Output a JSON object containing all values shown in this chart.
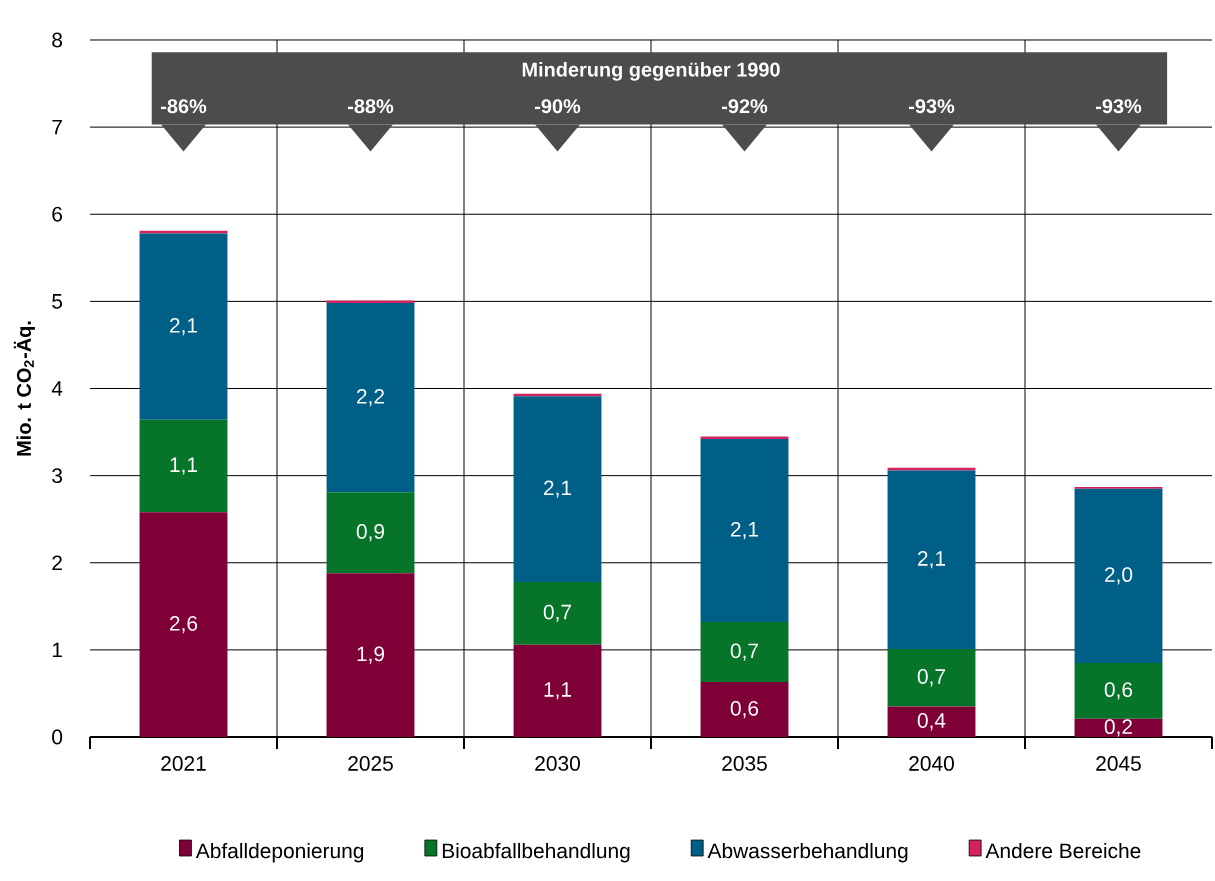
{
  "chart_data": {
    "type": "bar",
    "stacked": true,
    "ylabel": "Mio. t CO$_{2}$-Äq.",
    "categories": [
      "2021",
      "2025",
      "2030",
      "2035",
      "2040",
      "2045"
    ],
    "series": [
      {
        "name": "Abfalldeponierung",
        "color": "#7f0037",
        "values": [
          2.58,
          1.88,
          1.06,
          0.63,
          0.35,
          0.21
        ],
        "value_labels": [
          "2,6",
          "1,9",
          "1,1",
          "0,6",
          "0,4",
          "0,2"
        ]
      },
      {
        "name": "Bioabfallbehandlung",
        "color": "#06752a",
        "values": [
          1.06,
          0.93,
          0.72,
          0.69,
          0.66,
          0.64
        ],
        "value_labels": [
          "1,1",
          "0,9",
          "0,7",
          "0,7",
          "0,7",
          "0,6"
        ]
      },
      {
        "name": "Abwasserbehandlung",
        "color": "#005f87",
        "values": [
          2.14,
          2.17,
          2.13,
          2.1,
          2.05,
          2.0
        ],
        "value_labels": [
          "2,1",
          "2,2",
          "2,1",
          "2,1",
          "2,1",
          "2,0"
        ]
      },
      {
        "name": "Andere Bereiche",
        "color": "#d4225f",
        "values": [
          0.03,
          0.03,
          0.03,
          0.03,
          0.03,
          0.02
        ]
      }
    ],
    "ylim": [
      0,
      8
    ],
    "yticks": [
      0,
      1,
      2,
      3,
      4,
      5,
      6,
      7,
      8
    ],
    "grid": true,
    "legend": "bottom",
    "annotations": [
      "Minderung gegenüber 1990",
      "-86%",
      "-88%",
      "-90%",
      "-92%",
      "-93%",
      "-93%"
    ]
  }
}
